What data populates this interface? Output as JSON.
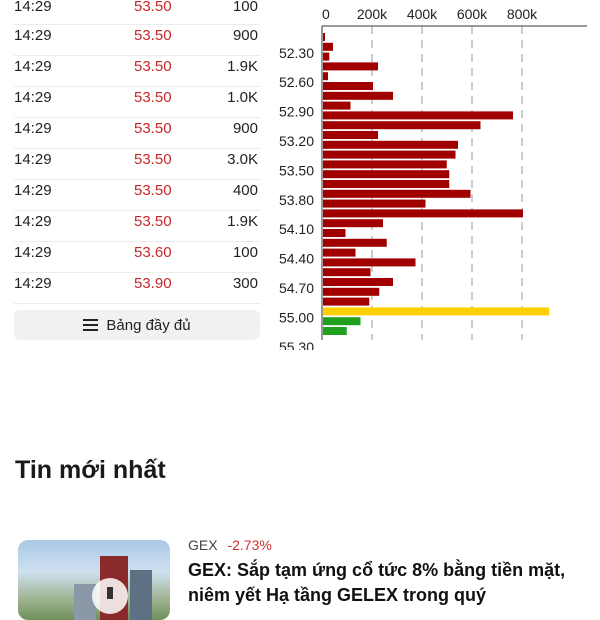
{
  "trades": [
    {
      "time": "14:29",
      "price": "53.50",
      "volume": "100"
    },
    {
      "time": "14:29",
      "price": "53.50",
      "volume": "900"
    },
    {
      "time": "14:29",
      "price": "53.50",
      "volume": "1.9K"
    },
    {
      "time": "14:29",
      "price": "53.50",
      "volume": "1.0K"
    },
    {
      "time": "14:29",
      "price": "53.50",
      "volume": "900"
    },
    {
      "time": "14:29",
      "price": "53.50",
      "volume": "3.0K"
    },
    {
      "time": "14:29",
      "price": "53.50",
      "volume": "400"
    },
    {
      "time": "14:29",
      "price": "53.50",
      "volume": "1.9K"
    },
    {
      "time": "14:29",
      "price": "53.60",
      "volume": "100"
    },
    {
      "time": "14:29",
      "price": "53.90",
      "volume": "300"
    }
  ],
  "full_button_label": "Bảng đầy đủ",
  "colors": {
    "price_down": "#c62828",
    "sell_bar": "#a00000",
    "ref_bar": "#ffd000",
    "buy_bar": "#1fa01f"
  },
  "chart_data": {
    "type": "bar",
    "orientation": "horizontal",
    "x_ticks": [
      "0",
      "200k",
      "400k",
      "600k",
      "800k"
    ],
    "xlim": [
      0,
      900000
    ],
    "y_tick_labels": [
      "52.30",
      "52.60",
      "52.90",
      "53.20",
      "53.50",
      "53.80",
      "54.10",
      "54.40",
      "54.70",
      "55.00",
      "55.30"
    ],
    "bars": [
      {
        "price": 52.2,
        "volume": 8000,
        "side": "sell"
      },
      {
        "price": 52.3,
        "volume": 40000,
        "side": "sell"
      },
      {
        "price": 52.4,
        "volume": 25000,
        "side": "sell"
      },
      {
        "price": 52.5,
        "volume": 220000,
        "side": "sell"
      },
      {
        "price": 52.6,
        "volume": 20000,
        "side": "sell"
      },
      {
        "price": 52.7,
        "volume": 200000,
        "side": "sell"
      },
      {
        "price": 52.8,
        "volume": 280000,
        "side": "sell"
      },
      {
        "price": 52.9,
        "volume": 110000,
        "side": "sell"
      },
      {
        "price": 53.0,
        "volume": 760000,
        "side": "sell"
      },
      {
        "price": 53.1,
        "volume": 630000,
        "side": "sell"
      },
      {
        "price": 53.2,
        "volume": 220000,
        "side": "sell"
      },
      {
        "price": 53.3,
        "volume": 540000,
        "side": "sell"
      },
      {
        "price": 53.4,
        "volume": 530000,
        "side": "sell"
      },
      {
        "price": 53.5,
        "volume": 495000,
        "side": "sell"
      },
      {
        "price": 53.6,
        "volume": 505000,
        "side": "sell"
      },
      {
        "price": 53.7,
        "volume": 505000,
        "side": "sell"
      },
      {
        "price": 53.8,
        "volume": 590000,
        "side": "sell"
      },
      {
        "price": 53.9,
        "volume": 410000,
        "side": "sell"
      },
      {
        "price": 54.0,
        "volume": 800000,
        "side": "sell"
      },
      {
        "price": 54.1,
        "volume": 240000,
        "side": "sell"
      },
      {
        "price": 54.2,
        "volume": 90000,
        "side": "sell"
      },
      {
        "price": 54.3,
        "volume": 255000,
        "side": "sell"
      },
      {
        "price": 54.4,
        "volume": 130000,
        "side": "sell"
      },
      {
        "price": 54.5,
        "volume": 370000,
        "side": "sell"
      },
      {
        "price": 54.6,
        "volume": 190000,
        "side": "sell"
      },
      {
        "price": 54.7,
        "volume": 280000,
        "side": "sell"
      },
      {
        "price": 54.8,
        "volume": 225000,
        "side": "sell"
      },
      {
        "price": 54.9,
        "volume": 185000,
        "side": "sell"
      },
      {
        "price": 55.0,
        "volume": 905000,
        "side": "reference"
      },
      {
        "price": 55.1,
        "volume": 150000,
        "side": "buy"
      },
      {
        "price": 55.2,
        "volume": 95000,
        "side": "buy"
      }
    ]
  },
  "news": {
    "section_title": "Tin mới nhất",
    "items": [
      {
        "ticker": "GEX",
        "change": "-2.73%",
        "headline": "GEX: Sắp tạm ứng cổ tức 8% bằng tiền mặt, niêm yết Hạ tầng GELEX trong quý"
      }
    ]
  }
}
